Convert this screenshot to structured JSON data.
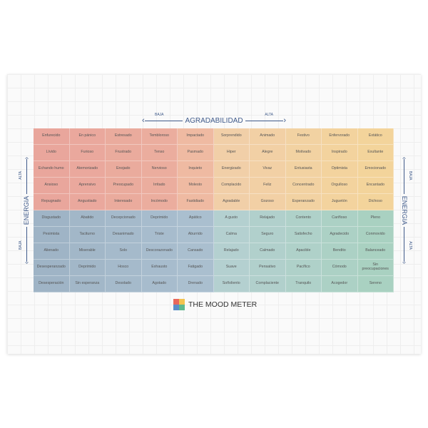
{
  "header": {
    "title": "AGRADABILIDAD",
    "low": "BAJA",
    "high": "ALTA"
  },
  "left_axis": {
    "title": "ENERGIA",
    "low": "BAJA",
    "high": "ALTA"
  },
  "right_axis": {
    "title": "ENERGIA",
    "low": "BAJA",
    "high": "ALTA"
  },
  "logo": {
    "text": "THE MOOD METER"
  },
  "colors": {
    "red": "#e9a69c",
    "yellow": "#f3d49b",
    "blue": "#aabfcf",
    "green": "#a9d1c1"
  },
  "grid": [
    [
      "Enfurecido",
      "En pánico",
      "Estresado",
      "Tembloroso",
      "Impactado",
      "Sorprendido",
      "Animado",
      "Festivo",
      "Enfervorado",
      "Extático"
    ],
    [
      "Lívido",
      "Furioso",
      "Frustrado",
      "Tenso",
      "Pasmado",
      "Hiper",
      "Alegre",
      "Motivado",
      "Inspirado",
      "Exultante"
    ],
    [
      "Echando humo",
      "Atemorizado",
      "Enojado",
      "Nervioso",
      "Inquieto",
      "Energizado",
      "Vivaz",
      "Entusiasta",
      "Optimista",
      "Emocionado"
    ],
    [
      "Ansioso",
      "Aprensivo",
      "Preocupado",
      "Irritado",
      "Molesto",
      "Complacido",
      "Feliz",
      "Concentrado",
      "Orgulloso",
      "Encantado"
    ],
    [
      "Repugnado",
      "Angustiado",
      "Interesado",
      "Incómodo",
      "Fastidiado",
      "Agradable",
      "Gozoso",
      "Esperanzado",
      "Juguetón",
      "Dichoso"
    ],
    [
      "Disgustado",
      "Abatido",
      "Decepcionado",
      "Deprimido",
      "Apático",
      "A gusto",
      "Relajado",
      "Contento",
      "Cariñoso",
      "Pleno"
    ],
    [
      "Pesimista",
      "Taciturno",
      "Desanimado",
      "Triste",
      "Aburrido",
      "Calma",
      "Seguro",
      "Satisfecho",
      "Agradecido",
      "Conmovido"
    ],
    [
      "Alienado",
      "Miserable",
      "Solo",
      "Descorazonado",
      "Cansado",
      "Relajado",
      "Calmado",
      "Apacible",
      "Bendito",
      "Balanceado"
    ],
    [
      "Desesperanzado",
      "Deprimido",
      "Hosco",
      "Exhausto",
      "Fatigado",
      "Suave",
      "Pensativo",
      "Pacífico",
      "Cómodo",
      "Sin preocupaciones"
    ],
    [
      "Desesperación",
      "Sin esperanza",
      "Desolado",
      "Agotado",
      "Drenado",
      "Soñoliento",
      "Complaciente",
      "Tranquilo",
      "Acogedor",
      "Sereno"
    ]
  ]
}
